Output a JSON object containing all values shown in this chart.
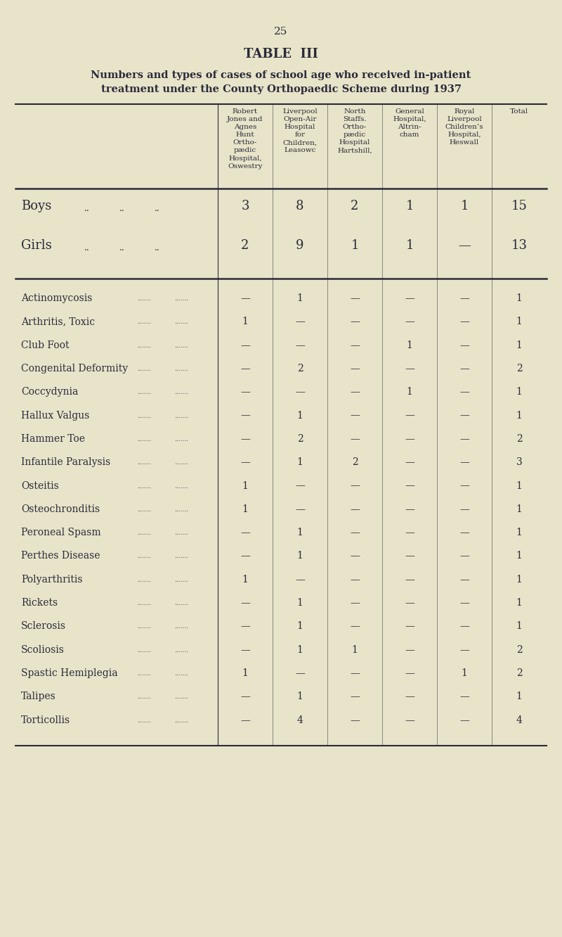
{
  "page_number": "25",
  "title": "TABLE  III",
  "subtitle1": "Numbers and types of cases of school age who received in-patient",
  "subtitle2": "treatment under the County Orthopaedic Scheme during 1937",
  "background_color": "#e8e4c9",
  "text_color": "#2a2a3a",
  "col_headers": [
    "Robert\nJones and\nAgnes\nHunt\nOrtho-\npædic\nHospital,\nOswestry",
    "Liverpool\nOpen-Air\nHospital\nfor\nChildren,\nLeasowc",
    "North\nStaffs.\nOrtho-\npædic\nHospital\nHartshill,",
    "General\nHospital,\nAltrin-\ncham",
    "Royal\nLiverpool\nChildren’s\nHospital,\nHeswall",
    "Total"
  ],
  "summary_rows": [
    {
      "label": "Boys",
      "values": [
        "3",
        "8",
        "2",
        "1",
        "1",
        "15"
      ]
    },
    {
      "label": "Girls",
      "values": [
        "2",
        "9",
        "1",
        "1",
        "—",
        "13"
      ]
    }
  ],
  "data_rows": [
    {
      "label": "Actinomycosis",
      "values": [
        "—",
        "1",
        "—",
        "—",
        "—",
        "1"
      ]
    },
    {
      "label": "Arthritis, Toxic",
      "values": [
        "1",
        "—",
        "—",
        "—",
        "—",
        "1"
      ]
    },
    {
      "label": "Club Foot",
      "values": [
        "—",
        "—",
        "—",
        "1",
        "—",
        "1"
      ]
    },
    {
      "label": "Congenital Deformity",
      "values": [
        "—",
        "2",
        "—",
        "—",
        "—",
        "2"
      ]
    },
    {
      "label": "Coccydynia",
      "values": [
        "—",
        "—",
        "—",
        "1",
        "—",
        "1"
      ]
    },
    {
      "label": "Hallux Valgus",
      "values": [
        "—",
        "1",
        "—",
        "—",
        "—",
        "1"
      ]
    },
    {
      "label": "Hammer Toe",
      "values": [
        "—",
        "2",
        "—",
        "—",
        "—",
        "2"
      ]
    },
    {
      "label": "Infantile Paralysis",
      "values": [
        "—",
        "1",
        "2",
        "—",
        "—",
        "3"
      ]
    },
    {
      "label": "Osteitis",
      "values": [
        "1",
        "—",
        "—",
        "—",
        "—",
        "1"
      ]
    },
    {
      "label": "Osteochronditis",
      "values": [
        "1",
        "—",
        "—",
        "—",
        "—",
        "1"
      ]
    },
    {
      "label": "Peroneal Spasm",
      "values": [
        "—",
        "1",
        "—",
        "—",
        "—",
        "1"
      ]
    },
    {
      "label": "Perthes Disease",
      "values": [
        "—",
        "1",
        "—",
        "—",
        "—",
        "1"
      ]
    },
    {
      "label": "Polyarthritis",
      "values": [
        "1",
        "—",
        "—",
        "—",
        "—",
        "1"
      ]
    },
    {
      "label": "Rickets",
      "values": [
        "—",
        "1",
        "—",
        "—",
        "—",
        "1"
      ]
    },
    {
      "label": "Sclerosis",
      "values": [
        "—",
        "1",
        "—",
        "—",
        "—",
        "1"
      ]
    },
    {
      "label": "Scoliosis",
      "values": [
        "—",
        "1",
        "1",
        "—",
        "—",
        "2"
      ]
    },
    {
      "label": "Spastic Hemiplegia",
      "values": [
        "1",
        "—",
        "—",
        "—",
        "1",
        "2"
      ]
    },
    {
      "label": "Talipes",
      "values": [
        "—",
        "1",
        "—",
        "—",
        "—",
        "1"
      ]
    },
    {
      "label": "Torticollis",
      "values": [
        "—",
        "4",
        "—",
        "—",
        "—",
        "4"
      ]
    }
  ]
}
